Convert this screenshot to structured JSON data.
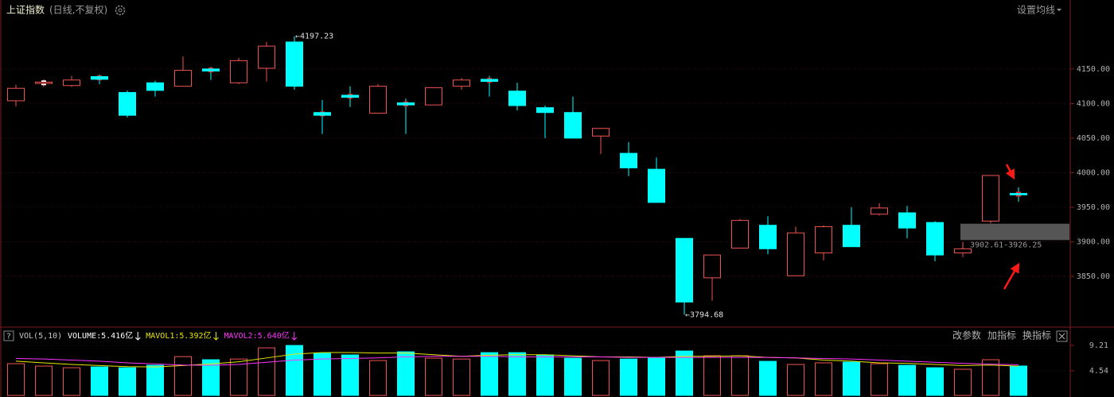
{
  "chart_data": [
    {
      "type": "candlestick",
      "title": "上证指数",
      "subtitle": "(日线,不复权)",
      "settings_button": "设置均线",
      "open": [
        4104,
        4129,
        4126,
        4139,
        4116,
        4130,
        4125,
        4150,
        4130,
        4151,
        4189,
        4087,
        4112,
        4086,
        4101,
        4098,
        4125,
        4135,
        4118,
        4094,
        4087,
        4053,
        4028,
        4005,
        3905,
        3848,
        3891,
        3924,
        3851,
        3884,
        3924,
        3940,
        3942,
        3928,
        3884,
        3930,
        3970
      ],
      "high": [
        4127,
        4135,
        4140,
        4142,
        4119,
        4133,
        4168,
        4153,
        4166,
        4189,
        4197.23,
        4105,
        4125,
        4128,
        4107,
        4123,
        4137,
        4140,
        4130,
        4097,
        4110,
        4064,
        4044,
        4022,
        3905,
        3881,
        3933,
        3937,
        3922,
        3924,
        3950,
        3956,
        3952,
        3930,
        3900,
        3996,
        3979
      ],
      "low": [
        4096,
        4124,
        4124,
        4128,
        4080,
        4110,
        4125,
        4134,
        4128,
        4132,
        4120,
        4056,
        4095,
        4086,
        4056,
        4098,
        4120,
        4110,
        4090,
        4050,
        4050,
        4027,
        3995,
        3957,
        3794.68,
        3815,
        3891,
        3882,
        3851,
        3873,
        3893,
        3938,
        3905,
        3872,
        3878,
        3927,
        3958
      ],
      "close": [
        4122,
        4131,
        4134,
        4135,
        4083,
        4119,
        4148,
        4147,
        4162,
        4183,
        4125,
        4083,
        4109,
        4125,
        4098,
        4123,
        4134,
        4132,
        4097,
        4087,
        4050,
        4064,
        4007,
        3957,
        3813,
        3881,
        3931,
        3890,
        3913,
        3922,
        3893,
        3949,
        3920,
        3881,
        3890,
        3996,
        3968
      ],
      "up_color": "#ef5350",
      "down_color": "#00ffff",
      "ylim": [
        3779,
        4221
      ],
      "yticks": [
        {
          "value": 4150,
          "label": "4150.00"
        },
        {
          "value": 4100,
          "label": "4100.00"
        },
        {
          "value": 4050,
          "label": "4050.00"
        },
        {
          "value": 4000,
          "label": "4000.00"
        },
        {
          "value": 3950,
          "label": "3950.00"
        },
        {
          "value": 3900,
          "label": "3900.00"
        },
        {
          "value": 3850,
          "label": "3850.00"
        }
      ],
      "grid": true,
      "high_label": {
        "value": 4197.23,
        "label": "←4197.23"
      },
      "low_label": {
        "value": 3794.68,
        "label": "←3794.68"
      },
      "range_box": {
        "low": 3902.61,
        "high": 3926.25,
        "label": "3902.61-3926.25",
        "color": "#555555"
      }
    },
    {
      "type": "volume",
      "title": "VOL(5,10)",
      "help": "?",
      "buttons": [
        "改参数",
        "加指标",
        "换指标"
      ],
      "ylim": [
        0,
        9.65
      ],
      "yticks": [
        9.21,
        4.54
      ],
      "series": [
        {
          "label": "VOLUME:5.416亿",
          "color": "#ffffff",
          "values": [
            5.84,
            5.4,
            5.1,
            5.25,
            5.1,
            5.55,
            7.15,
            6.57,
            6.7,
            8.76,
            9.2,
            7.74,
            7.45,
            6.42,
            8.03,
            6.86,
            6.7,
            7.88,
            7.88,
            7.45,
            6.86,
            6.42,
            6.7,
            6.86,
            8.18,
            7.3,
            7.3,
            6.28,
            5.7,
            6.0,
            6.13,
            5.84,
            5.55,
            5.1,
            4.82,
            6.57,
            5.416
          ]
        },
        {
          "label": "MAVOL1:5.392亿",
          "color": "#e6e600",
          "values": [
            6.3,
            6.0,
            5.7,
            5.5,
            5.3,
            5.25,
            5.5,
            5.8,
            6.2,
            6.9,
            7.6,
            7.9,
            7.9,
            7.8,
            7.8,
            7.5,
            7.2,
            7.4,
            7.5,
            7.5,
            7.3,
            7.1,
            7.1,
            7.0,
            7.2,
            7.2,
            7.3,
            7.0,
            6.9,
            6.5,
            6.3,
            6.0,
            5.9,
            5.7,
            5.5,
            5.6,
            5.392
          ]
        },
        {
          "label": "MAVOL2:5.640亿",
          "color": "#ff33ff",
          "values": [
            6.8,
            6.7,
            6.5,
            6.3,
            6.0,
            5.8,
            5.6,
            5.55,
            5.7,
            6.1,
            6.5,
            6.7,
            6.8,
            6.9,
            7.1,
            7.2,
            7.2,
            7.2,
            7.1,
            7.1,
            7.1,
            7.1,
            7.0,
            7.0,
            7.0,
            7.0,
            7.0,
            7.0,
            6.9,
            6.8,
            6.7,
            6.5,
            6.3,
            6.1,
            5.9,
            5.75,
            5.64
          ]
        }
      ]
    }
  ]
}
